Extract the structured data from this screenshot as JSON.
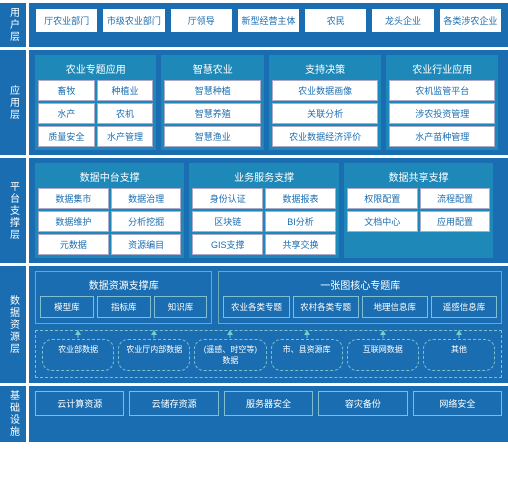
{
  "colors": {
    "primary": "#1a6db0",
    "panel": "#1e88b8",
    "border": "#7fc0d0",
    "text_on_dark": "#ffffff"
  },
  "layers": {
    "user": {
      "label": "用户层",
      "items": [
        "厅农业部门",
        "市级农业部门",
        "厅领导",
        "新型经营主体",
        "农民",
        "龙头企业",
        "各类涉农企业"
      ]
    },
    "app": {
      "label": "应用层",
      "panels": [
        {
          "title": "农业专题应用",
          "cols": 2,
          "cells": [
            "畜牧",
            "种植业",
            "水产",
            "农机",
            "质量安全",
            "水产管理"
          ]
        },
        {
          "title": "智慧农业",
          "cols": 1,
          "cells": [
            "智慧种植",
            "智慧养殖",
            "智慧渔业"
          ]
        },
        {
          "title": "支持决策",
          "cols": 1,
          "cells": [
            "农业数据画像",
            "关联分析",
            "农业数据经济评价"
          ]
        },
        {
          "title": "农业行业应用",
          "cols": 1,
          "cells": [
            "农机监管平台",
            "涉农投资管理",
            "水产苗种管理"
          ]
        }
      ]
    },
    "platform": {
      "label": "平台支撑层",
      "panels": [
        {
          "title": "数据中台支撑",
          "cols": 2,
          "cells": [
            "数据集市",
            "数据治理",
            "数据维护",
            "分析挖掘",
            "元数据",
            "资源编目"
          ]
        },
        {
          "title": "业务服务支撑",
          "cols": 2,
          "cells": [
            "身份认证",
            "数据报表",
            "区块链",
            "BI分析",
            "GIS支撑",
            "共享交换"
          ]
        },
        {
          "title": "数据共享支撑",
          "cols": 2,
          "cells": [
            "权限配置",
            "流程配置",
            "文档中心",
            "应用配置"
          ]
        }
      ]
    },
    "data": {
      "label": "数据资源层",
      "groups": [
        {
          "title": "数据资源支撑库",
          "cells": [
            "模型库",
            "指标库",
            "知识库"
          ]
        },
        {
          "title": "一张图核心专题库",
          "cells": [
            "农业各类专题",
            "农村各类专题",
            "地理信息库",
            "遥感信息库"
          ]
        }
      ],
      "sources": [
        "农业部数据",
        "农业厅内部数据",
        "(遥感、时空等)\n数据",
        "市、县资源库",
        "互联网数据",
        "其他"
      ]
    },
    "infra": {
      "label": "基础设施",
      "items": [
        "云计算资源",
        "云储存资源",
        "服务器安全",
        "容灾备份",
        "网络安全"
      ]
    }
  }
}
